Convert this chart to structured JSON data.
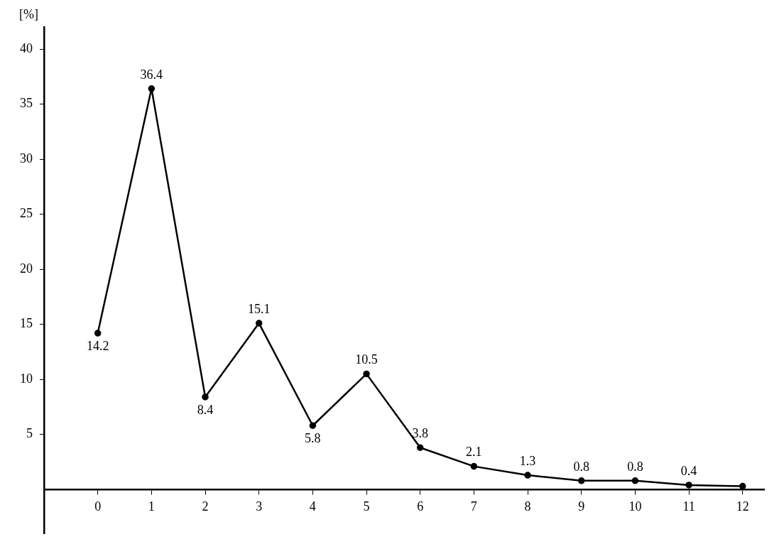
{
  "chart_data": {
    "type": "line",
    "ylabel": "[%]",
    "x": [
      0,
      1,
      2,
      3,
      4,
      5,
      6,
      7,
      8,
      9,
      10,
      11,
      12
    ],
    "series": [
      {
        "color": "#000000",
        "values": [
          14.2,
          36.4,
          8.4,
          15.1,
          5.8,
          10.5,
          3.8,
          2.1,
          1.3,
          0.8,
          0.8,
          0.4,
          0.3
        ],
        "value_labels": [
          "14.2",
          "36.4",
          "8.4",
          "15.1",
          "5.8",
          "10.5",
          "3.8",
          "2.1",
          "1.3",
          "0.8",
          "0.8",
          "0.4",
          null
        ]
      }
    ],
    "xlim": [
      -1,
      12.4
    ],
    "xticks": [
      0,
      1,
      2,
      3,
      4,
      5,
      6,
      7,
      8,
      9,
      10,
      11,
      12
    ],
    "ylim": [
      -4,
      42
    ],
    "yticks": [
      5,
      10,
      15,
      20,
      25,
      30,
      35,
      40
    ],
    "grid": false,
    "legend": false,
    "marker": "circle",
    "line_style": "solid"
  }
}
